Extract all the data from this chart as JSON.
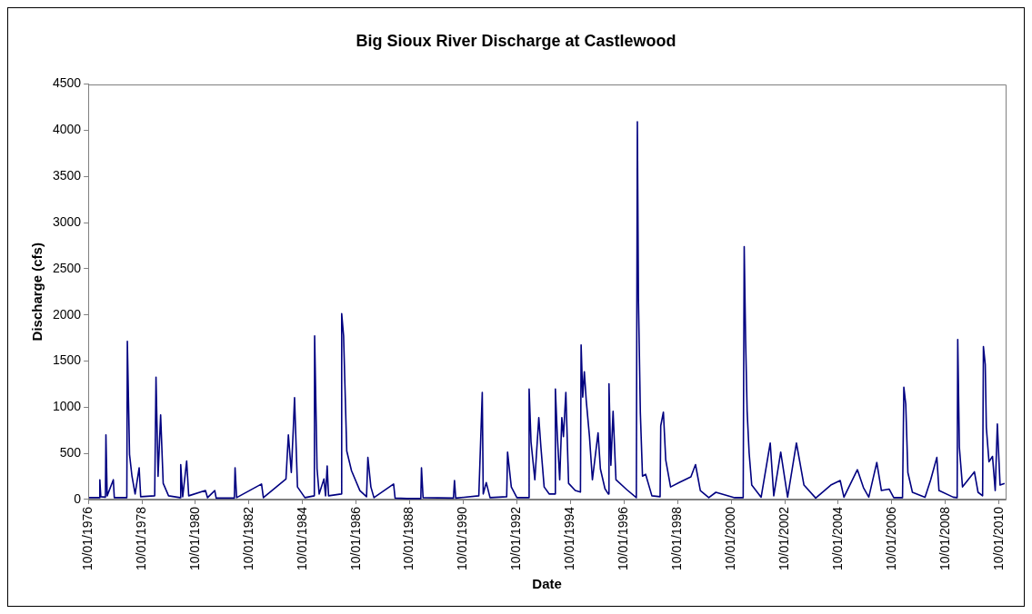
{
  "chart_data": {
    "type": "line",
    "title": "Big Sioux River Discharge at Castlewood",
    "xlabel": "Date",
    "ylabel": "Discharge (cfs)",
    "xlim": [
      "1976-10-01",
      "2010-12-31"
    ],
    "xticks": [
      {
        "value": "1976-10-01",
        "label": "10/01/1976"
      },
      {
        "value": "1978-10-01",
        "label": "10/01/1978"
      },
      {
        "value": "1980-10-01",
        "label": "10/01/1980"
      },
      {
        "value": "1982-10-01",
        "label": "10/01/1982"
      },
      {
        "value": "1984-10-01",
        "label": "10/01/1984"
      },
      {
        "value": "1986-10-01",
        "label": "10/01/1986"
      },
      {
        "value": "1988-10-01",
        "label": "10/01/1988"
      },
      {
        "value": "1990-10-01",
        "label": "10/01/1990"
      },
      {
        "value": "1992-10-01",
        "label": "10/01/1992"
      },
      {
        "value": "1994-10-01",
        "label": "10/01/1994"
      },
      {
        "value": "1996-10-01",
        "label": "10/01/1996"
      },
      {
        "value": "1998-10-01",
        "label": "10/01/1998"
      },
      {
        "value": "2000-10-01",
        "label": "10/01/2000"
      },
      {
        "value": "2002-10-01",
        "label": "10/01/2002"
      },
      {
        "value": "2004-10-01",
        "label": "10/01/2004"
      },
      {
        "value": "2006-10-01",
        "label": "10/01/2006"
      },
      {
        "value": "2008-10-01",
        "label": "10/01/2008"
      },
      {
        "value": "2010-10-01",
        "label": "10/01/2010"
      }
    ],
    "ylim": [
      0,
      4500
    ],
    "yticks": [
      0,
      500,
      1000,
      1500,
      2000,
      2500,
      3000,
      3500,
      4000,
      4500
    ],
    "grid": false,
    "legend": false,
    "marker": "none",
    "line_style": "solid",
    "series": [
      {
        "color": "#000080",
        "x": [
          "1976-10-01",
          "1977-03-01",
          "1977-03-07",
          "1977-03-20",
          "1977-05-22",
          "1977-05-29",
          "1977-06-15",
          "1977-09-07",
          "1977-09-20",
          "1978-03-10",
          "1978-03-17",
          "1978-04-16",
          "1978-05-19",
          "1978-07-01",
          "1978-08-25",
          "1978-09-15",
          "1979-03-25",
          "1979-04-12",
          "1979-05-10",
          "1979-06-14",
          "1979-07-19",
          "1979-09-30",
          "1980-03-05",
          "1980-03-14",
          "1980-04-10",
          "1980-06-03",
          "1980-07-01",
          "1981-02-14",
          "1981-03-15",
          "1981-06-21",
          "1981-07-10",
          "1982-03-15",
          "1982-03-25",
          "1982-04-15",
          "1983-03-21",
          "1983-04-15",
          "1984-02-17",
          "1984-03-21",
          "1984-04-30",
          "1984-05-29",
          "1984-06-13",
          "1984-07-23",
          "1984-11-01",
          "1985-03-10",
          "1985-03-14",
          "1985-04-16",
          "1985-05-15",
          "1985-07-19",
          "1985-08-10",
          "1985-09-01",
          "1985-09-20",
          "1986-03-10",
          "1986-03-18",
          "1986-04-13",
          "1986-05-01",
          "1986-05-26",
          "1986-07-30",
          "1986-11-21",
          "1987-02-20",
          "1987-03-10",
          "1987-04-20",
          "1987-06-01",
          "1988-02-24",
          "1988-03-15",
          "1988-08-22",
          "1989-03-01",
          "1989-03-10",
          "1989-04-01",
          "1990-05-20",
          "1990-06-03",
          "1990-06-20",
          "1991-05-01",
          "1991-06-17",
          "1991-06-30",
          "1991-08-11",
          "1991-10-01",
          "1992-05-15",
          "1992-05-27",
          "1992-07-17",
          "1992-10-01",
          "1993-03-10",
          "1993-03-17",
          "1993-04-12",
          "1993-06-03",
          "1993-07-27",
          "1993-08-25",
          "1993-10-08",
          "1993-12-15",
          "1994-03-01",
          "1994-03-10",
          "1994-04-05",
          "1994-05-08",
          "1994-06-06",
          "1994-06-28",
          "1994-07-31",
          "1994-09-06",
          "1994-12-06",
          "1995-02-15",
          "1995-02-24",
          "1995-03-18",
          "1995-04-09",
          "1995-05-05",
          "1995-06-18",
          "1995-07-28",
          "1995-10-13",
          "1995-11-14",
          "1996-01-15",
          "1996-03-01",
          "1996-03-10",
          "1996-04-05",
          "1996-05-05",
          "1996-06-13",
          "1996-11-10",
          "1997-03-18",
          "1997-04-01",
          "1997-04-16",
          "1997-05-12",
          "1997-06-10",
          "1997-07-23",
          "1997-10-16",
          "1998-02-05",
          "1998-02-14",
          "1998-03-22",
          "1998-04-23",
          "1998-06-28",
          "1998-10-23",
          "1999-04-01",
          "1999-06-03",
          "1999-08-08",
          "1999-12-01",
          "2000-03-07",
          "2000-11-17",
          "2001-03-14",
          "2001-03-28",
          "2001-04-16",
          "2001-05-07",
          "2001-06-03",
          "2001-07-09",
          "2001-11-14",
          "2002-03-18",
          "2002-05-05",
          "2002-08-08",
          "2002-11-10",
          "2003-03-10",
          "2003-06-21",
          "2003-11-28",
          "2004-06-21",
          "2004-10-27",
          "2004-12-17",
          "2005-06-18",
          "2005-09-09",
          "2005-11-21",
          "2006-03-10",
          "2006-05-12",
          "2006-08-25",
          "2006-10-27",
          "2007-02-24",
          "2007-03-14",
          "2007-04-09",
          "2007-05-08",
          "2007-07-09",
          "2007-12-28",
          "2008-03-14",
          "2008-06-06",
          "2008-07-05",
          "2009-01-15",
          "2009-03-10",
          "2009-03-18",
          "2009-04-09",
          "2009-05-22",
          "2009-10-31",
          "2009-12-20",
          "2010-02-20",
          "2010-03-03",
          "2010-03-28",
          "2010-04-12",
          "2010-05-18",
          "2010-07-05",
          "2010-08-11",
          "2010-09-09",
          "2010-10-16",
          "2010-12-17"
        ],
        "values": [
          20,
          20,
          214,
          30,
          25,
          700,
          40,
          214,
          20,
          20,
          1714,
          487,
          253,
          60,
          343,
          30,
          40,
          1325,
          250,
          916,
          175,
          40,
          20,
          378,
          30,
          417,
          40,
          97,
          20,
          97,
          15,
          15,
          343,
          20,
          168,
          20,
          222,
          701,
          292,
          800,
          1103,
          136,
          20,
          40,
          1773,
          331,
          60,
          222,
          40,
          362,
          40,
          60,
          2014,
          1773,
          1247,
          526,
          312,
          97,
          30,
          456,
          136,
          20,
          168,
          15,
          10,
          10,
          343,
          20,
          15,
          206,
          15,
          40,
          1161,
          60,
          183,
          20,
          30,
          514,
          136,
          20,
          20,
          1196,
          623,
          214,
          888,
          565,
          136,
          60,
          60,
          1196,
          701,
          214,
          888,
          682,
          1161,
          175,
          97,
          80,
          1675,
          1110,
          1383,
          1071,
          682,
          214,
          721,
          331,
          117,
          60,
          1254,
          370,
          955,
          214,
          105,
          20,
          4091,
          2162,
          935,
          253,
          273,
          40,
          30,
          799,
          947,
          428,
          136,
          183,
          245,
          378,
          97,
          20,
          78,
          20,
          20,
          2739,
          1734,
          955,
          506,
          156,
          25,
          612,
          40,
          514,
          25,
          612,
          156,
          15,
          156,
          206,
          25,
          323,
          129,
          25,
          401,
          97,
          113,
          20,
          20,
          1216,
          1032,
          292,
          78,
          25,
          214,
          456,
          97,
          25,
          20,
          1734,
          565,
          136,
          300,
          78,
          40,
          1656,
          1461,
          779,
          409,
          467,
          97,
          818,
          156,
          175
        ]
      }
    ]
  }
}
